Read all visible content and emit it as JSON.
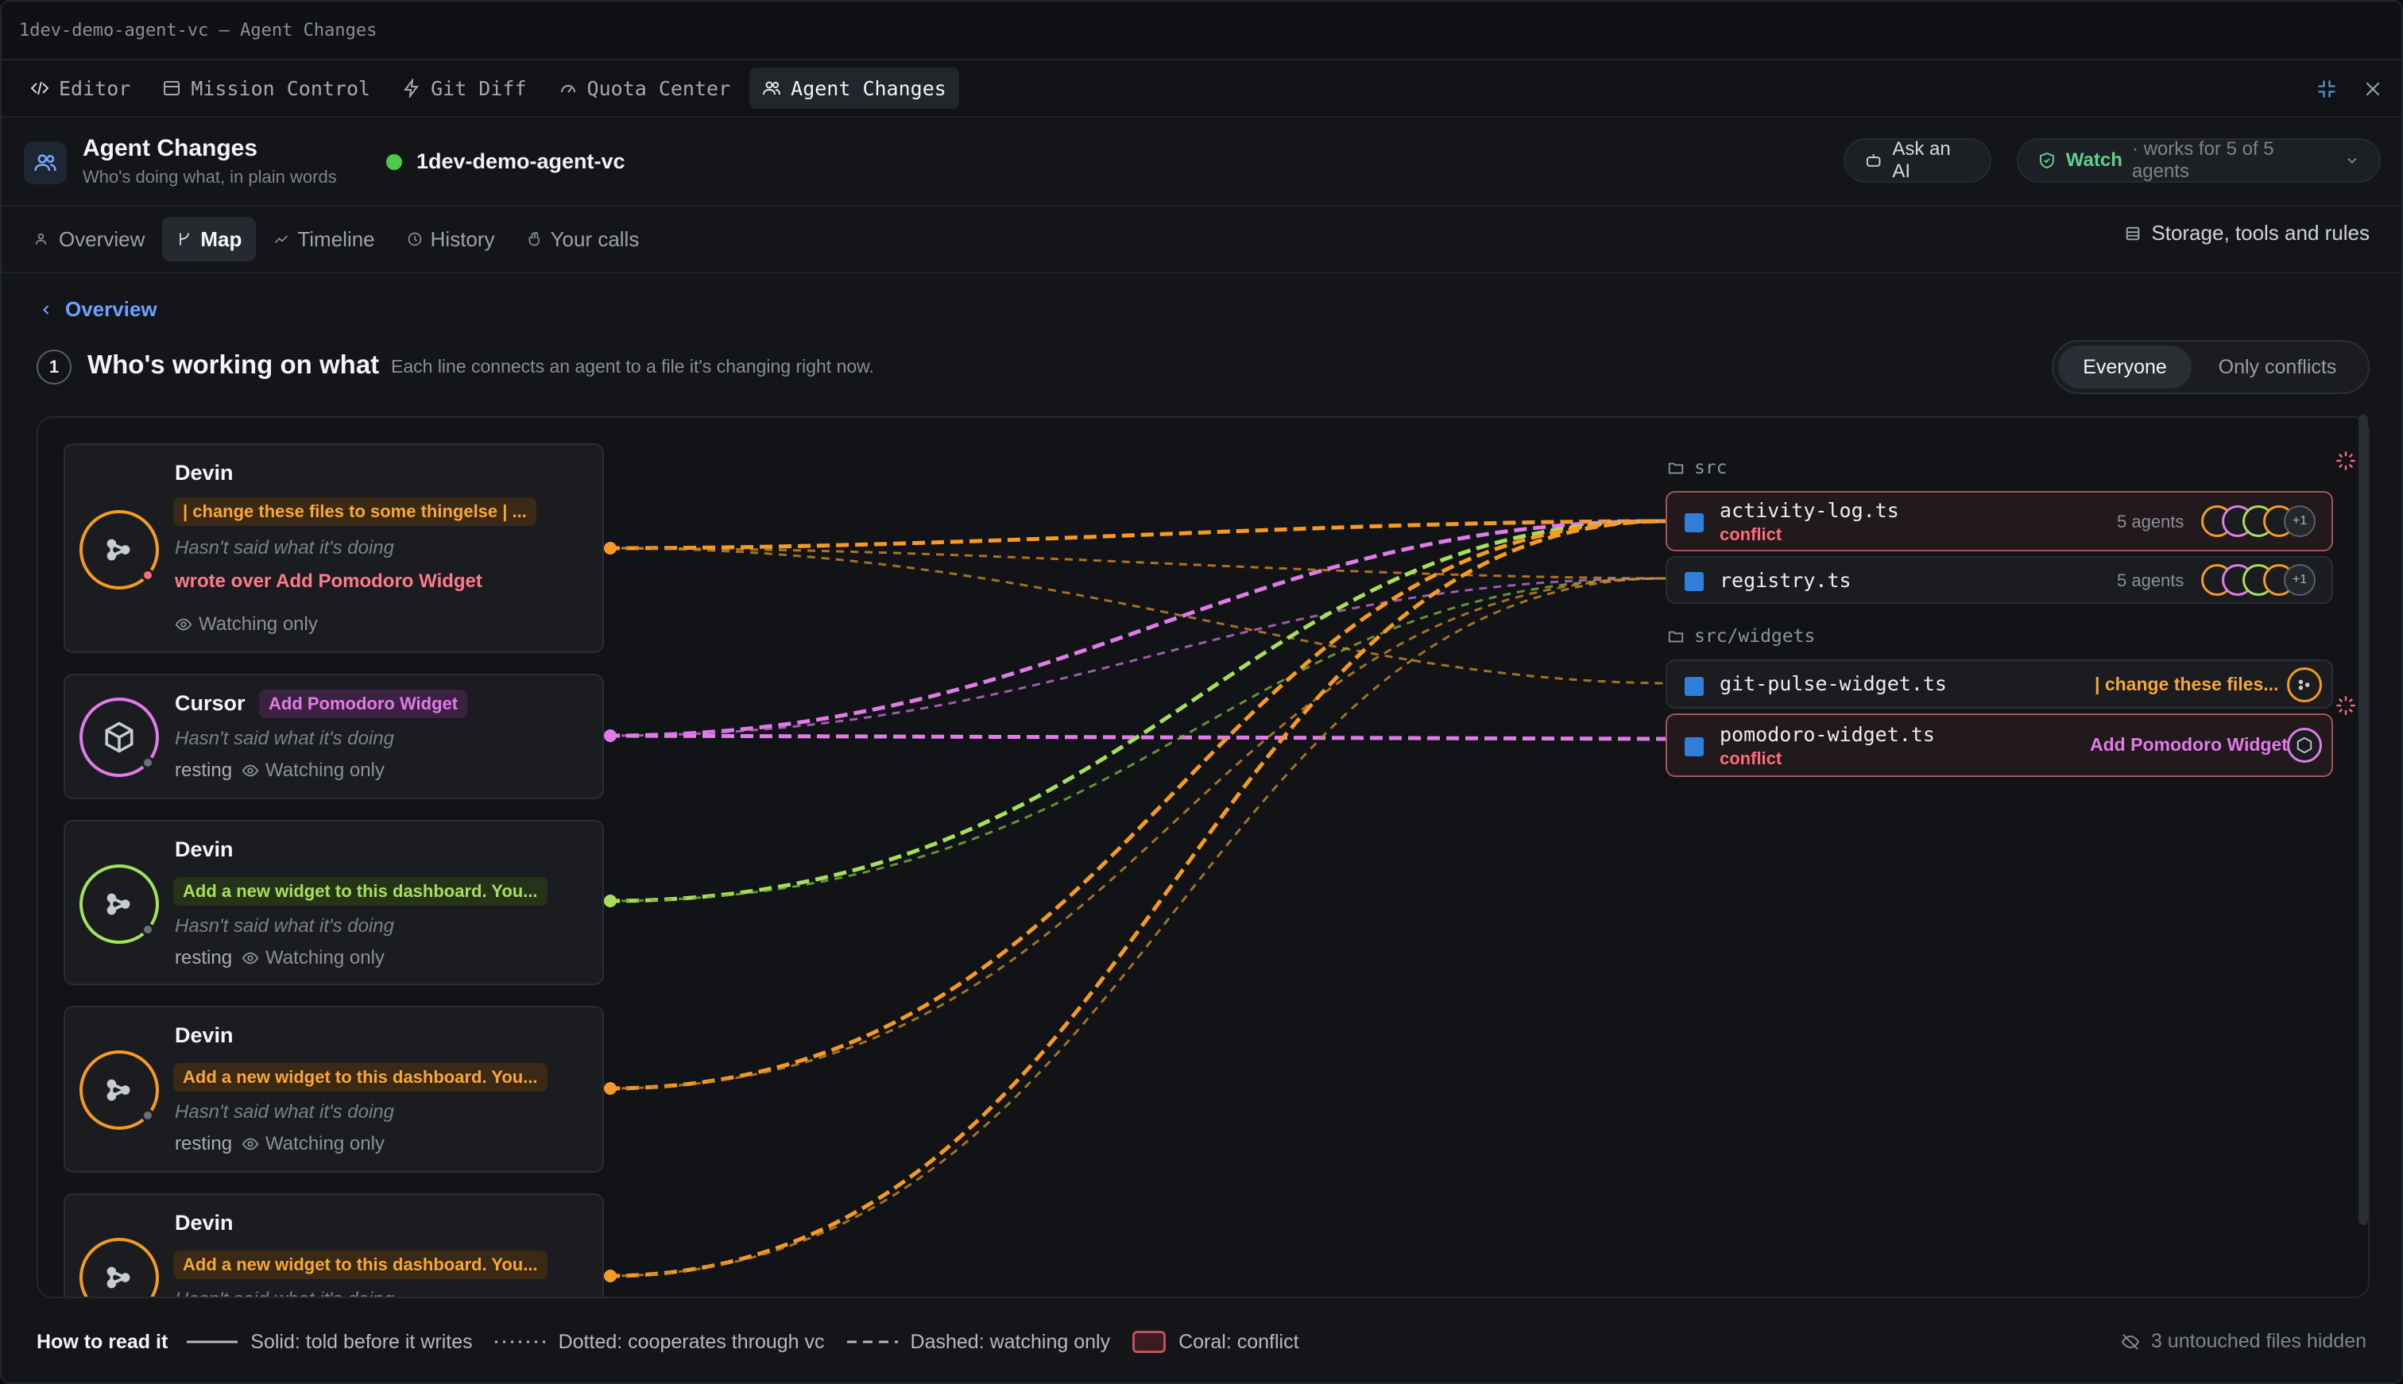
{
  "window": {
    "title": "1dev-demo-agent-vc — Agent Changes"
  },
  "tabs": [
    {
      "label": "Editor",
      "icon": "code-icon"
    },
    {
      "label": "Mission Control",
      "icon": "panel-icon"
    },
    {
      "label": "Git Diff",
      "icon": "bolt-icon"
    },
    {
      "label": "Quota Center",
      "icon": "gauge-icon"
    },
    {
      "label": "Agent Changes",
      "icon": "users-icon"
    }
  ],
  "header": {
    "title": "Agent Changes",
    "subtitle": "Who's doing what, in plain words",
    "project": "1dev-demo-agent-vc",
    "ask_ai": "Ask an AI",
    "watch_label": "Watch",
    "watch_rest": "· works for 5 of 5 agents"
  },
  "subnav": {
    "items": [
      "Overview",
      "Map",
      "Timeline",
      "History",
      "Your calls"
    ],
    "active": "Map",
    "storage": "Storage, tools and rules"
  },
  "section": {
    "back": "Overview",
    "step": "1",
    "title": "Who's working on what",
    "desc": "Each line connects an agent to a file it's changing right now.",
    "filter": [
      "Everyone",
      "Only conflicts"
    ],
    "filter_selected": "Everyone"
  },
  "agents": [
    {
      "name": "Devin",
      "task": "| change these files to some thingelse | ...",
      "said": "Hasn't said what it's doing",
      "wrote": "wrote over Add Pomodoro Widget",
      "state": "",
      "watch": "Watching only",
      "color": "#f59a23"
    },
    {
      "name": "Cursor",
      "task": "Add Pomodoro Widget",
      "said": "Hasn't said what it's doing",
      "wrote": "",
      "state": "resting",
      "watch": "Watching only",
      "color": "#e07be8"
    },
    {
      "name": "Devin",
      "task": "Add a new widget to this dashboard. You...",
      "said": "Hasn't said what it's doing",
      "wrote": "",
      "state": "resting",
      "watch": "Watching only",
      "color": "#a6e05a"
    },
    {
      "name": "Devin",
      "task": "Add a new widget to this dashboard. You...",
      "said": "Hasn't said what it's doing",
      "wrote": "",
      "state": "resting",
      "watch": "Watching only",
      "color": "#f59a23"
    },
    {
      "name": "Devin",
      "task": "Add a new widget to this dashboard. You...",
      "said": "Hasn't said what it's doing",
      "wrote": "",
      "state": "",
      "watch": "",
      "color": "#f59a23"
    }
  ],
  "folders": [
    "src",
    "src/widgets"
  ],
  "files": [
    {
      "name": "activity-log.ts",
      "status": "conflict",
      "agents_label": "5 agents",
      "more": "+1"
    },
    {
      "name": "registry.ts",
      "status": "",
      "agents_label": "5 agents",
      "more": "+1"
    },
    {
      "name": "git-pulse-widget.ts",
      "status": "",
      "task": "| change these files..."
    },
    {
      "name": "pomodoro-widget.ts",
      "status": "conflict",
      "task": "Add Pomodoro Widget"
    }
  ],
  "legend": {
    "title": "How to read it",
    "items": [
      "Solid: told before it writes",
      "Dotted: cooperates through vc",
      "Dashed: watching only",
      "Coral: conflict"
    ],
    "hidden": "3 untouched files hidden"
  },
  "colors": {
    "orange": "#f59a23",
    "pink": "#e07be8",
    "green": "#a6e05a",
    "conflict": "#ff6b7c",
    "accent_link": "#6ea0ff",
    "watch_green": "#5ed18a"
  }
}
